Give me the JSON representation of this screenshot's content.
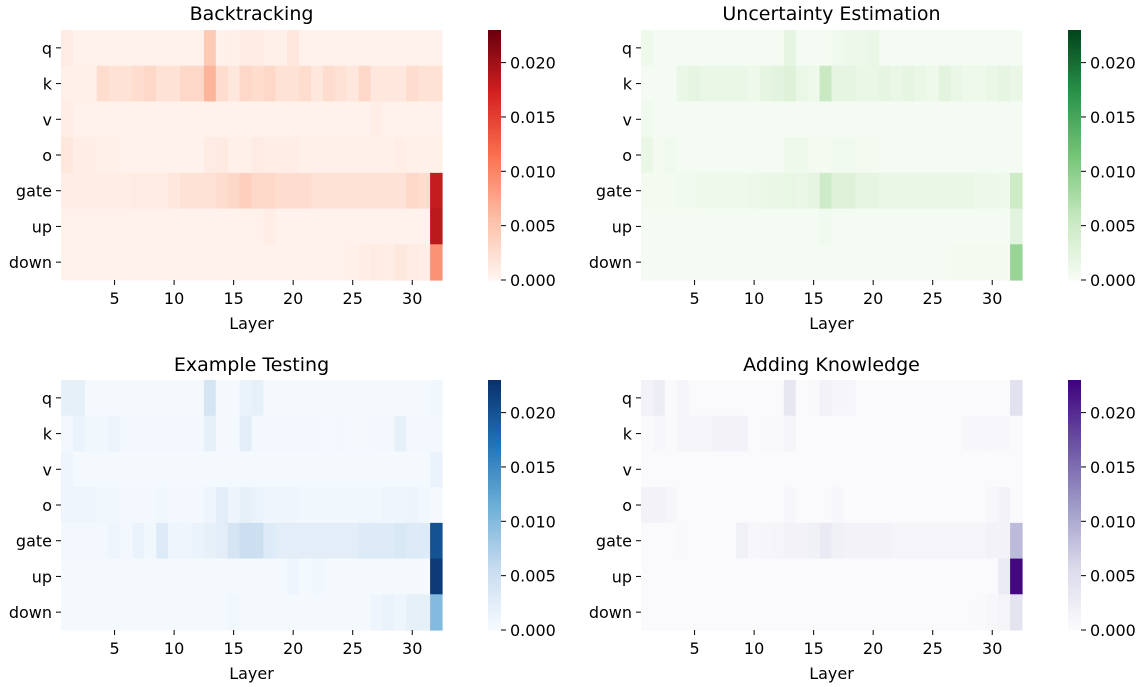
{
  "chart_data": [
    {
      "type": "heatmap",
      "title": "Backtracking",
      "xlabel": "Layer",
      "ylabel": "",
      "rows": [
        "q",
        "k",
        "v",
        "o",
        "gate",
        "up",
        "down"
      ],
      "x_ticks": [
        "5",
        "10",
        "15",
        "20",
        "25",
        "30"
      ],
      "colorbar_ticks": [
        "0.000",
        "0.005",
        "0.010",
        "0.015",
        "0.020"
      ],
      "vmin": 0,
      "vmax": 0.023,
      "colormap": [
        "#fff5f0",
        "#fcbea5",
        "#fb7050",
        "#d32020",
        "#67000d"
      ],
      "values": [
        [
          0.001,
          0.0003,
          0.0003,
          0.0003,
          0.0003,
          0.0003,
          0.0003,
          0.0003,
          0.0003,
          0.0003,
          0.0003,
          0.0003,
          0.0045,
          0.0003,
          0.0005,
          0.001,
          0.001,
          0.0005,
          0.0005,
          0.0015,
          0.0003,
          0.0003,
          0.0003,
          0.0003,
          0.0003,
          0.0003,
          0.0003,
          0.0003,
          0.0003,
          0.0003,
          0.0003,
          0.0003
        ],
        [
          0.0005,
          0.0005,
          0.0005,
          0.0025,
          0.002,
          0.002,
          0.0025,
          0.003,
          0.002,
          0.002,
          0.003,
          0.003,
          0.0065,
          0.0025,
          0.0015,
          0.003,
          0.0025,
          0.003,
          0.002,
          0.002,
          0.0025,
          0.0015,
          0.0025,
          0.002,
          0.0015,
          0.003,
          0.0015,
          0.0015,
          0.0015,
          0.0025,
          0.002,
          0.002
        ],
        [
          0.0008,
          0.0003,
          0.0003,
          0.0003,
          0.0003,
          0.0003,
          0.0003,
          0.0003,
          0.0003,
          0.0003,
          0.0003,
          0.0003,
          0.0003,
          0.0003,
          0.0003,
          0.0003,
          0.0003,
          0.0003,
          0.0003,
          0.0003,
          0.0003,
          0.0003,
          0.0003,
          0.0003,
          0.0003,
          0.0003,
          0.0008,
          0.0003,
          0.0003,
          0.0003,
          0.0003,
          0.0003
        ],
        [
          0.0015,
          0.0008,
          0.0008,
          0.0005,
          0.0005,
          0.0003,
          0.0003,
          0.0003,
          0.0003,
          0.0003,
          0.0003,
          0.0003,
          0.001,
          0.0012,
          0.0005,
          0.0005,
          0.001,
          0.0008,
          0.0008,
          0.0008,
          0.0005,
          0.0005,
          0.0005,
          0.0005,
          0.0005,
          0.0005,
          0.0005,
          0.0005,
          0.0008,
          0.0005,
          0.0005,
          0.0005
        ],
        [
          0.0008,
          0.0008,
          0.0008,
          0.0008,
          0.0008,
          0.0008,
          0.001,
          0.001,
          0.001,
          0.0015,
          0.002,
          0.002,
          0.002,
          0.0025,
          0.003,
          0.004,
          0.003,
          0.003,
          0.0025,
          0.0025,
          0.0025,
          0.002,
          0.002,
          0.002,
          0.002,
          0.002,
          0.002,
          0.002,
          0.002,
          0.003,
          0.0025,
          0.018
        ],
        [
          0.0003,
          0.0003,
          0.0003,
          0.0003,
          0.0003,
          0.0003,
          0.0003,
          0.0003,
          0.0003,
          0.0003,
          0.0003,
          0.0003,
          0.0003,
          0.0003,
          0.0003,
          0.0003,
          0.0003,
          0.0008,
          0.0003,
          0.0003,
          0.0003,
          0.0003,
          0.0003,
          0.0003,
          0.0003,
          0.0003,
          0.0003,
          0.0003,
          0.0003,
          0.0003,
          0.0003,
          0.0185
        ],
        [
          0.0003,
          0.0003,
          0.0003,
          0.0003,
          0.0003,
          0.0003,
          0.0003,
          0.0003,
          0.0003,
          0.0003,
          0.0003,
          0.0003,
          0.0003,
          0.0003,
          0.0003,
          0.0003,
          0.0003,
          0.0003,
          0.0003,
          0.0003,
          0.0003,
          0.0003,
          0.0003,
          0.0003,
          0.0005,
          0.0008,
          0.001,
          0.0008,
          0.0015,
          0.001,
          0.0008,
          0.009
        ]
      ]
    },
    {
      "type": "heatmap",
      "title": "Uncertainty Estimation",
      "xlabel": "Layer",
      "ylabel": "",
      "rows": [
        "q",
        "k",
        "v",
        "o",
        "gate",
        "up",
        "down"
      ],
      "x_ticks": [
        "5",
        "10",
        "15",
        "20",
        "25",
        "30"
      ],
      "colorbar_ticks": [
        "0.000",
        "0.005",
        "0.010",
        "0.015",
        "0.020"
      ],
      "vmin": 0,
      "vmax": 0.023,
      "colormap": [
        "#f7fcf5",
        "#c6e8bf",
        "#74c476",
        "#2a924a",
        "#00441b"
      ],
      "values": [
        [
          0.001,
          0.0003,
          0.0003,
          0.0003,
          0.0003,
          0.0003,
          0.0003,
          0.0003,
          0.0003,
          0.0003,
          0.0003,
          0.0003,
          0.002,
          0.0003,
          0.0003,
          0.0003,
          0.0008,
          0.0012,
          0.0012,
          0.0015,
          0.0003,
          0.0003,
          0.0003,
          0.0003,
          0.0003,
          0.0003,
          0.0003,
          0.0003,
          0.0003,
          0.0003,
          0.0003,
          0.0003
        ],
        [
          0.0003,
          0.0003,
          0.0003,
          0.0015,
          0.002,
          0.0015,
          0.0015,
          0.0015,
          0.0015,
          0.001,
          0.002,
          0.0025,
          0.003,
          0.0015,
          0.001,
          0.0055,
          0.002,
          0.002,
          0.0015,
          0.0015,
          0.002,
          0.0015,
          0.002,
          0.0015,
          0.001,
          0.0025,
          0.0015,
          0.001,
          0.001,
          0.0015,
          0.002,
          0.0015
        ],
        [
          0.0008,
          0.0003,
          0.0003,
          0.0003,
          0.0003,
          0.0003,
          0.0003,
          0.0003,
          0.0003,
          0.0003,
          0.0003,
          0.0003,
          0.0003,
          0.0003,
          0.0003,
          0.0003,
          0.0003,
          0.0003,
          0.0003,
          0.0003,
          0.0003,
          0.0003,
          0.0003,
          0.0003,
          0.0003,
          0.0003,
          0.0003,
          0.0003,
          0.0003,
          0.0003,
          0.0003,
          0.0003
        ],
        [
          0.0015,
          0.0005,
          0.0008,
          0.0003,
          0.0003,
          0.0003,
          0.0003,
          0.0003,
          0.0003,
          0.0003,
          0.0003,
          0.0003,
          0.001,
          0.001,
          0.0005,
          0.0005,
          0.0008,
          0.0008,
          0.0005,
          0.0005,
          0.0003,
          0.0003,
          0.0003,
          0.0003,
          0.0003,
          0.0003,
          0.0003,
          0.0003,
          0.0003,
          0.0003,
          0.0003,
          0.0003
        ],
        [
          0.0005,
          0.0005,
          0.0005,
          0.0008,
          0.0008,
          0.001,
          0.001,
          0.001,
          0.001,
          0.0012,
          0.0015,
          0.0015,
          0.0018,
          0.0015,
          0.002,
          0.005,
          0.003,
          0.003,
          0.002,
          0.002,
          0.0015,
          0.0015,
          0.0015,
          0.0015,
          0.0015,
          0.0015,
          0.0015,
          0.0015,
          0.0012,
          0.0012,
          0.001,
          0.005
        ],
        [
          0.0003,
          0.0003,
          0.0003,
          0.0003,
          0.0003,
          0.0003,
          0.0003,
          0.0003,
          0.0003,
          0.0003,
          0.0003,
          0.0003,
          0.0003,
          0.0003,
          0.0003,
          0.0008,
          0.0003,
          0.0003,
          0.0003,
          0.0003,
          0.0003,
          0.0003,
          0.0003,
          0.0003,
          0.0003,
          0.0003,
          0.0003,
          0.0003,
          0.0003,
          0.0003,
          0.0003,
          0.0025
        ],
        [
          0.0003,
          0.0003,
          0.0003,
          0.0003,
          0.0003,
          0.0003,
          0.0003,
          0.0003,
          0.0003,
          0.0003,
          0.0003,
          0.0003,
          0.0003,
          0.0003,
          0.0003,
          0.0003,
          0.0003,
          0.0003,
          0.0003,
          0.0003,
          0.0003,
          0.0003,
          0.0003,
          0.0003,
          0.0003,
          0.0003,
          0.0005,
          0.0005,
          0.0005,
          0.0005,
          0.0005,
          0.009
        ]
      ]
    },
    {
      "type": "heatmap",
      "title": "Example Testing",
      "xlabel": "Layer",
      "ylabel": "",
      "rows": [
        "q",
        "k",
        "v",
        "o",
        "gate",
        "up",
        "down"
      ],
      "x_ticks": [
        "5",
        "10",
        "15",
        "20",
        "25",
        "30"
      ],
      "colorbar_ticks": [
        "0.000",
        "0.005",
        "0.010",
        "0.015",
        "0.020"
      ],
      "vmin": 0,
      "vmax": 0.023,
      "colormap": [
        "#f7fbff",
        "#c6dbef",
        "#6baed6",
        "#2171b5",
        "#08306b"
      ],
      "values": [
        [
          0.002,
          0.002,
          0.0003,
          0.0003,
          0.0003,
          0.0003,
          0.0003,
          0.0003,
          0.0003,
          0.0003,
          0.0003,
          0.0003,
          0.004,
          0.0003,
          0.0003,
          0.0015,
          0.002,
          0.0003,
          0.0003,
          0.0003,
          0.0003,
          0.0003,
          0.0003,
          0.0003,
          0.0003,
          0.0003,
          0.0003,
          0.0003,
          0.0003,
          0.0003,
          0.0003,
          0.0008
        ],
        [
          0.0005,
          0.0015,
          0.0008,
          0.0008,
          0.0012,
          0.0005,
          0.0005,
          0.0005,
          0.0005,
          0.0005,
          0.0005,
          0.0005,
          0.002,
          0.0003,
          0.0003,
          0.0025,
          0.0005,
          0.0005,
          0.0005,
          0.0005,
          0.0005,
          0.0005,
          0.0003,
          0.0005,
          0.0003,
          0.0003,
          0.0005,
          0.0005,
          0.002,
          0.0005,
          0.0005,
          0.0005
        ],
        [
          0.001,
          0.0003,
          0.0003,
          0.0003,
          0.0003,
          0.0003,
          0.0003,
          0.0003,
          0.0003,
          0.0003,
          0.0003,
          0.0003,
          0.0003,
          0.0003,
          0.0003,
          0.0003,
          0.0003,
          0.0003,
          0.0003,
          0.0003,
          0.0003,
          0.0003,
          0.0003,
          0.0003,
          0.0003,
          0.0003,
          0.0003,
          0.0003,
          0.0003,
          0.0003,
          0.0003,
          0.0015
        ],
        [
          0.001,
          0.001,
          0.001,
          0.0008,
          0.0008,
          0.0005,
          0.0005,
          0.0005,
          0.0008,
          0.0005,
          0.0005,
          0.0005,
          0.001,
          0.0025,
          0.0012,
          0.002,
          0.0015,
          0.001,
          0.001,
          0.001,
          0.0008,
          0.0008,
          0.0008,
          0.0008,
          0.0008,
          0.0008,
          0.0008,
          0.001,
          0.001,
          0.0012,
          0.0008,
          0.0003
        ],
        [
          0.0005,
          0.0005,
          0.0005,
          0.0005,
          0.001,
          0.0005,
          0.0015,
          0.0008,
          0.003,
          0.001,
          0.001,
          0.0015,
          0.002,
          0.0025,
          0.004,
          0.005,
          0.005,
          0.003,
          0.0025,
          0.0025,
          0.0025,
          0.0025,
          0.0025,
          0.0025,
          0.0025,
          0.003,
          0.003,
          0.003,
          0.0035,
          0.003,
          0.003,
          0.02
        ],
        [
          0.0003,
          0.0003,
          0.0003,
          0.0003,
          0.0003,
          0.0003,
          0.0003,
          0.0003,
          0.0003,
          0.0003,
          0.0003,
          0.0003,
          0.0003,
          0.0003,
          0.0003,
          0.0003,
          0.0003,
          0.0003,
          0.0003,
          0.001,
          0.0003,
          0.0008,
          0.0003,
          0.0003,
          0.0003,
          0.0003,
          0.0003,
          0.0003,
          0.0003,
          0.0003,
          0.0003,
          0.022
        ],
        [
          0.0003,
          0.0003,
          0.0003,
          0.0003,
          0.0003,
          0.0003,
          0.0003,
          0.0003,
          0.0003,
          0.0003,
          0.0003,
          0.0003,
          0.0003,
          0.0003,
          0.0008,
          0.0003,
          0.0003,
          0.0003,
          0.0003,
          0.0003,
          0.0003,
          0.0003,
          0.0003,
          0.0003,
          0.0003,
          0.0003,
          0.001,
          0.0015,
          0.001,
          0.002,
          0.002,
          0.01
        ]
      ]
    },
    {
      "type": "heatmap",
      "title": "Adding Knowledge",
      "xlabel": "Layer",
      "ylabel": "",
      "rows": [
        "q",
        "k",
        "v",
        "o",
        "gate",
        "up",
        "down"
      ],
      "x_ticks": [
        "5",
        "10",
        "15",
        "20",
        "25",
        "30"
      ],
      "colorbar_ticks": [
        "0.000",
        "0.005",
        "0.010",
        "0.015",
        "0.020"
      ],
      "vmin": 0,
      "vmax": 0.023,
      "colormap": [
        "#fcfbfd",
        "#dadaeb",
        "#9e9ac8",
        "#6a51a3",
        "#3f007d"
      ],
      "values": [
        [
          0.0015,
          0.0025,
          0.0003,
          0.0012,
          0.0003,
          0.0003,
          0.0003,
          0.0003,
          0.0003,
          0.0003,
          0.0003,
          0.0003,
          0.0035,
          0.0003,
          0.0005,
          0.0015,
          0.001,
          0.001,
          0.0003,
          0.0003,
          0.0003,
          0.0003,
          0.0003,
          0.0003,
          0.0003,
          0.0003,
          0.0003,
          0.0003,
          0.0003,
          0.0003,
          0.0003,
          0.0045
        ],
        [
          0.0003,
          0.0008,
          0.0003,
          0.0012,
          0.0012,
          0.0012,
          0.0015,
          0.0015,
          0.0015,
          0.0003,
          0.0005,
          0.0005,
          0.0012,
          0.0003,
          0.0003,
          0.0003,
          0.0003,
          0.0003,
          0.0003,
          0.0003,
          0.0003,
          0.0003,
          0.0003,
          0.0003,
          0.0003,
          0.0003,
          0.0003,
          0.0008,
          0.0008,
          0.0008,
          0.0008,
          0.0003
        ],
        [
          0.0003,
          0.0003,
          0.0003,
          0.0003,
          0.0003,
          0.0003,
          0.0003,
          0.0003,
          0.0003,
          0.0003,
          0.0003,
          0.0003,
          0.0003,
          0.0003,
          0.0003,
          0.0003,
          0.0003,
          0.0003,
          0.0003,
          0.0003,
          0.0003,
          0.0003,
          0.0003,
          0.0003,
          0.0003,
          0.0003,
          0.0003,
          0.0003,
          0.0003,
          0.0003,
          0.0003,
          0.0003
        ],
        [
          0.0015,
          0.0015,
          0.001,
          0.0003,
          0.0003,
          0.0003,
          0.0003,
          0.0003,
          0.0003,
          0.0003,
          0.0003,
          0.0003,
          0.0008,
          0.0003,
          0.0003,
          0.0003,
          0.0008,
          0.0003,
          0.0003,
          0.0003,
          0.0003,
          0.0003,
          0.0003,
          0.0003,
          0.0003,
          0.0003,
          0.0003,
          0.0003,
          0.0003,
          0.0008,
          0.0015,
          0.0003
        ],
        [
          0.0003,
          0.0003,
          0.0003,
          0.0005,
          0.0003,
          0.0003,
          0.0003,
          0.0003,
          0.002,
          0.0008,
          0.001,
          0.0012,
          0.0015,
          0.0015,
          0.002,
          0.003,
          0.002,
          0.0015,
          0.0015,
          0.0015,
          0.0015,
          0.0012,
          0.0012,
          0.0012,
          0.0012,
          0.0012,
          0.0012,
          0.0012,
          0.0012,
          0.0015,
          0.0015,
          0.0085
        ],
        [
          0.0003,
          0.0003,
          0.0003,
          0.0003,
          0.0003,
          0.0003,
          0.0003,
          0.0003,
          0.0003,
          0.0003,
          0.0003,
          0.0003,
          0.0003,
          0.0003,
          0.0003,
          0.0003,
          0.0003,
          0.0003,
          0.0003,
          0.0003,
          0.0003,
          0.0003,
          0.0003,
          0.0003,
          0.0003,
          0.0003,
          0.0003,
          0.0003,
          0.0003,
          0.0003,
          0.003,
          0.0225
        ],
        [
          0.0003,
          0.0003,
          0.0003,
          0.0003,
          0.0003,
          0.0003,
          0.0003,
          0.0003,
          0.0003,
          0.0003,
          0.0003,
          0.0003,
          0.0003,
          0.0003,
          0.0003,
          0.0003,
          0.0003,
          0.0003,
          0.0003,
          0.0003,
          0.0003,
          0.0003,
          0.0003,
          0.0003,
          0.0003,
          0.0003,
          0.0003,
          0.0003,
          0.0005,
          0.0008,
          0.0012,
          0.004
        ]
      ]
    }
  ]
}
